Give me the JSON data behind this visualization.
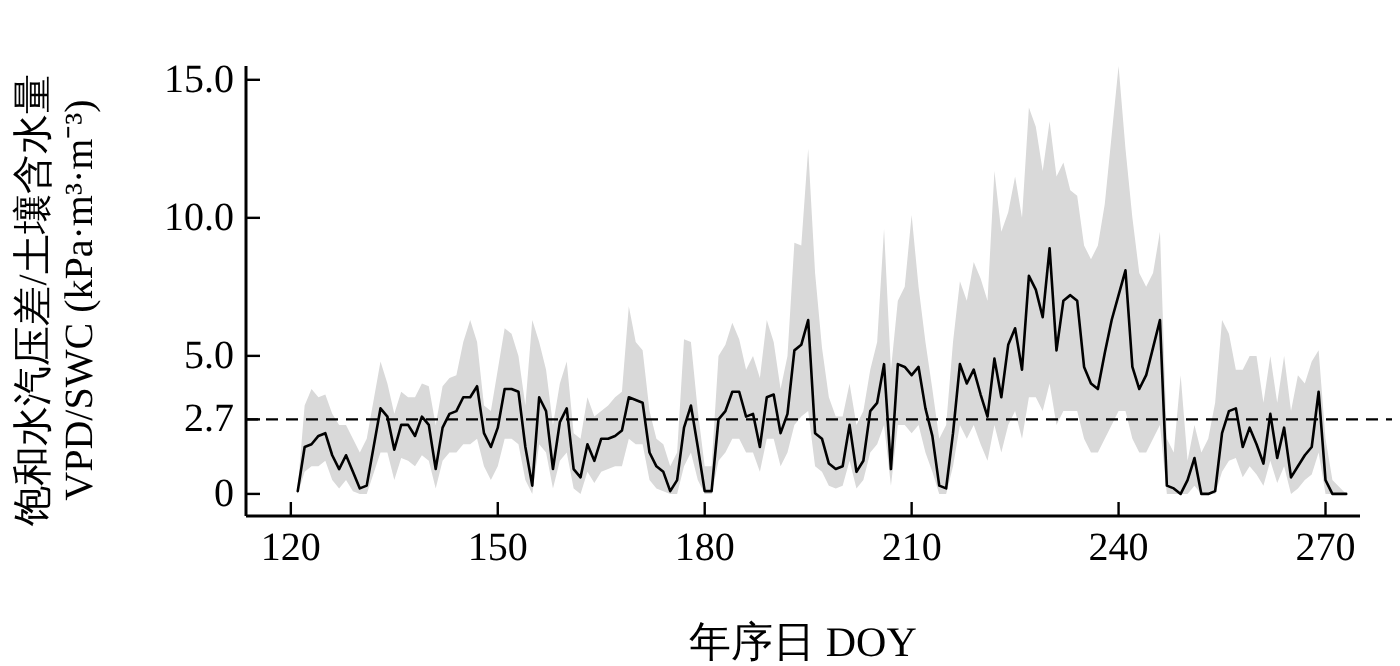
{
  "chart_data": {
    "type": "line",
    "xlabel": "年序日 DOY",
    "ylabel": "饱和水汽压差/土壤含水量\nVPD/SWC (kPa·m³·m⁻³)",
    "x": [
      121,
      122,
      123,
      124,
      125,
      126,
      127,
      128,
      129,
      130,
      131,
      133,
      134,
      135,
      136,
      137,
      138,
      139,
      140,
      141,
      142,
      143,
      144,
      145,
      146,
      147,
      148,
      149,
      150,
      151,
      152,
      153,
      154,
      155,
      156,
      157,
      158,
      159,
      160,
      161,
      162,
      163,
      164,
      165,
      166,
      167,
      168,
      169,
      170,
      171,
      172,
      173,
      174,
      175,
      176,
      177,
      178,
      179,
      180,
      181,
      182,
      183,
      184,
      185,
      186,
      187,
      188,
      189,
      190,
      191,
      192,
      193,
      194,
      195,
      196,
      197,
      198,
      199,
      200,
      201,
      202,
      203,
      204,
      205,
      206,
      207,
      208,
      209,
      210,
      211,
      212,
      213,
      214,
      215,
      216,
      217,
      218,
      219,
      220,
      221,
      222,
      223,
      224,
      225,
      226,
      227,
      228,
      229,
      230,
      231,
      232,
      233,
      234,
      235,
      236,
      237,
      238,
      239,
      240,
      241,
      242,
      243,
      244,
      245,
      246,
      247,
      248,
      249,
      250,
      251,
      252,
      253,
      254,
      255,
      256,
      257,
      258,
      259,
      260,
      261,
      262,
      263,
      264,
      265,
      266,
      267,
      268,
      269,
      270,
      271,
      273
    ],
    "series": [
      {
        "color": "#000000",
        "values": [
          0.1,
          1.7,
          1.8,
          2.1,
          2.2,
          1.4,
          0.9,
          1.4,
          0.8,
          0.2,
          0.3,
          3.1,
          2.8,
          1.6,
          2.5,
          2.5,
          2.1,
          2.8,
          2.5,
          0.9,
          2.4,
          2.9,
          3.0,
          3.5,
          3.5,
          3.9,
          2.2,
          1.7,
          2.4,
          3.8,
          3.8,
          3.7,
          1.7,
          0.3,
          3.5,
          3.0,
          0.9,
          2.6,
          3.1,
          0.9,
          0.6,
          1.8,
          1.2,
          2.0,
          2.0,
          2.1,
          2.3,
          3.5,
          3.4,
          3.3,
          1.5,
          1.0,
          0.8,
          0.1,
          0.5,
          2.4,
          3.2,
          1.7,
          0.1,
          0.1,
          2.7,
          3.0,
          3.7,
          3.7,
          2.8,
          2.9,
          1.7,
          3.5,
          3.6,
          2.2,
          2.9,
          5.2,
          5.4,
          6.3,
          2.2,
          2.0,
          1.1,
          0.9,
          1.0,
          2.5,
          0.8,
          1.2,
          3.0,
          3.3,
          4.7,
          0.9,
          4.7,
          4.6,
          4.3,
          4.6,
          3.1,
          2.1,
          0.3,
          0.2,
          2.2,
          4.7,
          4.0,
          4.5,
          3.6,
          2.8,
          4.9,
          3.5,
          5.4,
          6.0,
          4.5,
          7.9,
          7.4,
          6.4,
          8.9,
          5.2,
          7.0,
          7.2,
          7.0,
          4.6,
          4.0,
          3.8,
          5.1,
          6.3,
          7.2,
          8.1,
          4.6,
          3.8,
          4.3,
          5.3,
          6.3,
          0.3,
          0.2,
          0.0,
          0.5,
          1.3,
          0.0,
          0.0,
          0.1,
          2.2,
          3.0,
          3.1,
          1.7,
          2.4,
          1.8,
          1.1,
          2.9,
          1.3,
          2.4,
          0.6,
          1.0,
          1.4,
          1.7,
          3.7,
          0.5,
          0.0,
          0.0
        ],
        "lower": [
          0,
          0.8,
          1.0,
          1.0,
          1.2,
          0.5,
          0.2,
          0.5,
          0.1,
          0,
          0,
          1.5,
          1.5,
          0.5,
          1.3,
          1.2,
          1.0,
          1.4,
          1.2,
          0.2,
          1.2,
          1.5,
          1.5,
          1.8,
          1.8,
          2.0,
          1.0,
          0.5,
          1.0,
          2.0,
          2.0,
          1.8,
          0.5,
          0,
          1.8,
          1.5,
          0.2,
          1.2,
          1.5,
          0.2,
          0,
          0.8,
          0.4,
          0.8,
          0.9,
          1.0,
          1.0,
          2.0,
          1.8,
          1.8,
          0.5,
          0.2,
          0.1,
          0,
          0,
          1.0,
          1.5,
          0.5,
          0,
          0,
          1.2,
          1.5,
          2.0,
          2.0,
          1.5,
          1.5,
          0.8,
          2.0,
          2.0,
          1.0,
          1.5,
          2.5,
          2.8,
          3.0,
          1.0,
          0.8,
          0.3,
          0.2,
          0.3,
          1.2,
          0.2,
          0.5,
          1.5,
          1.8,
          2.5,
          0.3,
          2.5,
          2.5,
          2.2,
          2.5,
          1.5,
          0.8,
          0,
          0,
          1.0,
          2.5,
          2.0,
          2.5,
          1.8,
          1.2,
          2.5,
          1.5,
          2.5,
          3.0,
          2.0,
          3.5,
          3.5,
          3.0,
          4.0,
          2.5,
          3.0,
          3.0,
          3.0,
          2.0,
          1.5,
          1.5,
          2.0,
          2.5,
          3.0,
          3.0,
          2.0,
          1.5,
          1.5,
          2.0,
          2.5,
          0,
          0,
          0,
          0,
          0.3,
          0,
          0,
          0,
          0.8,
          1.2,
          1.3,
          0.6,
          1.0,
          0.7,
          0.3,
          1.2,
          0.4,
          1.0,
          0,
          0.2,
          0.5,
          0.7,
          1.5,
          0,
          0,
          0
        ],
        "upper": [
          0.2,
          3.2,
          3.8,
          3.5,
          3.6,
          2.9,
          2.5,
          2.5,
          2.0,
          1.5,
          2.0,
          4.8,
          4.0,
          2.9,
          3.7,
          3.5,
          3.5,
          4.0,
          3.9,
          2.5,
          3.9,
          4.2,
          4.3,
          5.5,
          6.3,
          5.5,
          3.2,
          3.0,
          4.5,
          6.0,
          5.8,
          5.0,
          3.2,
          6.3,
          5.5,
          4.5,
          2.5,
          4.0,
          4.8,
          2.2,
          2.0,
          3.5,
          2.8,
          3.0,
          3.2,
          3.5,
          3.7,
          6.8,
          5.5,
          5.2,
          3.0,
          2.0,
          1.8,
          1.0,
          1.5,
          5.6,
          5.5,
          3.0,
          1.0,
          1.0,
          5.0,
          5.4,
          6.2,
          5.6,
          4.5,
          5.0,
          4.2,
          6.3,
          5.5,
          3.8,
          5.0,
          9.1,
          9.0,
          12.5,
          8.0,
          5.3,
          3.5,
          2.8,
          2.8,
          4.0,
          2.5,
          3.0,
          4.5,
          5.5,
          9.6,
          4.5,
          7.0,
          7.5,
          10.1,
          7.5,
          5.5,
          3.8,
          2.0,
          2.5,
          5.5,
          7.7,
          7.0,
          8.4,
          7.8,
          7.0,
          11.7,
          9.5,
          10.2,
          11.5,
          10.0,
          14.0,
          13.3,
          11.7,
          13.5,
          11.5,
          12.0,
          11.0,
          10.8,
          9.0,
          8.5,
          9.0,
          10.5,
          13.0,
          15.5,
          12.5,
          10.0,
          8.0,
          7.5,
          8.0,
          9.5,
          2.0,
          1.5,
          4.3,
          1.2,
          2.5,
          1.5,
          2.0,
          3.3,
          6.3,
          5.8,
          4.5,
          4.5,
          5.0,
          5.0,
          3.3,
          5.0,
          3.3,
          5.0,
          3.0,
          4.3,
          4.0,
          4.8,
          5.2,
          2.0,
          0.5,
          0
        ]
      }
    ],
    "xlim": [
      113.5,
      275
    ],
    "xticks": [
      120,
      150,
      180,
      210,
      240,
      270
    ],
    "ylim": [
      -0.8,
      15.5
    ],
    "yticks": [
      0,
      2.7,
      {
        "value": 5,
        "label": "5.0"
      },
      {
        "value": 10,
        "label": "10.0"
      },
      {
        "value": 15,
        "label": "15.0"
      }
    ],
    "ref_lines": [
      {
        "axis": "y",
        "value": 2.7,
        "label": null,
        "color": "#000000",
        "line_style": "dashed"
      }
    ]
  }
}
